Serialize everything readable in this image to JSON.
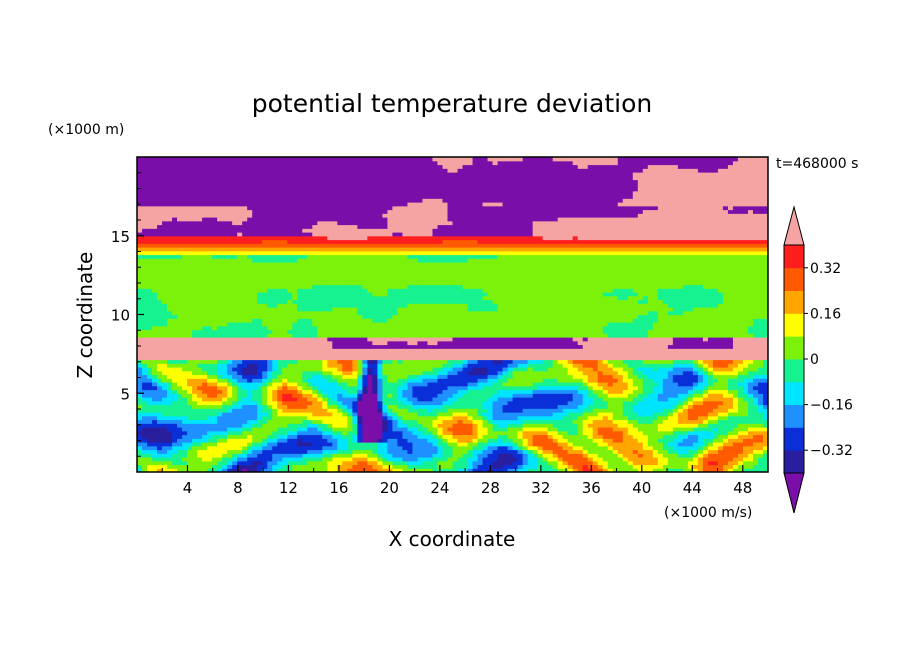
{
  "chart_data": {
    "type": "heatmap",
    "title": "potential temperature deviation",
    "xlabel": "X coordinate",
    "ylabel": "Z coordinate",
    "x_unit": "(×1000 m/s)",
    "y_unit": "(×1000 m)",
    "time_label": "t=468000 s",
    "xlim": [
      0,
      50
    ],
    "ylim": [
      0,
      20
    ],
    "x_ticks": [
      4,
      8,
      12,
      16,
      20,
      24,
      28,
      32,
      36,
      40,
      44,
      48
    ],
    "y_ticks": [
      5,
      10,
      15
    ],
    "colorbar": {
      "min": -0.4,
      "max": 0.4,
      "step": 0.08,
      "tick_values": [
        0.32,
        0.16,
        0,
        -0.16,
        -0.32
      ],
      "tick_labels": [
        "0.32",
        "0.16",
        "0",
        "−0.16",
        "−0.32"
      ],
      "colors": [
        "#7b0ea8",
        "#281e9e",
        "#0a2fd8",
        "#1e90ff",
        "#00e5ff",
        "#17f290",
        "#7cf20a",
        "#ffff00",
        "#ffa500",
        "#ff5a00",
        "#ff1e1e",
        "#f5a3a3"
      ]
    },
    "layers": [
      {
        "z_range": [
          17.0,
          20.0
        ],
        "pattern": "purple base with pink clouds"
      },
      {
        "z_range": [
          15.0,
          17.0
        ],
        "pattern": "pink with scattered purple"
      },
      {
        "z_range": [
          14.0,
          15.0
        ],
        "pattern": "red/orange/yellow bands"
      },
      {
        "z_range": [
          8.5,
          13.5
        ],
        "pattern": "green/light green"
      },
      {
        "z_range": [
          7.2,
          8.5
        ],
        "pattern": "pink band with purple lumps"
      },
      {
        "z_range": [
          0.0,
          7.2
        ],
        "pattern": "turbulent eddies mixing all colors"
      }
    ]
  }
}
